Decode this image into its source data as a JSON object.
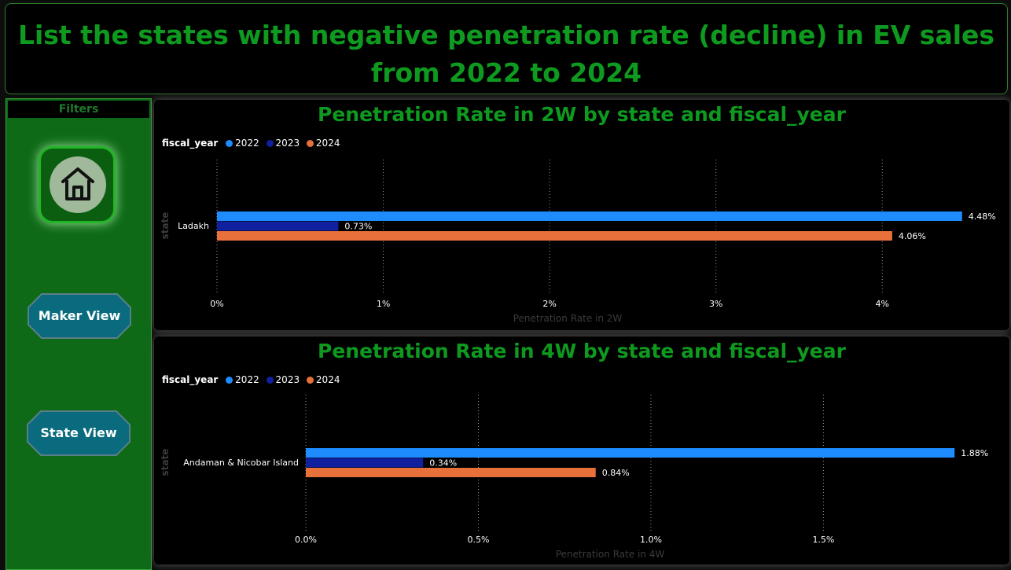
{
  "page": {
    "title": "List the states with negative penetration rate (decline) in EV sales from 2022 to 2024"
  },
  "sidebar": {
    "filters_label": "Filters",
    "home_icon": "home-icon",
    "buttons": [
      {
        "label": "Maker View"
      },
      {
        "label": "State View"
      }
    ]
  },
  "colors": {
    "title_green": "#0e9a1f",
    "sidebar_green": "#0e6a17",
    "series_2022": "#1e8bff",
    "series_2023": "#11209e",
    "series_2024": "#e8703a",
    "nav_button": "#0a6b7e"
  },
  "chart_data": [
    {
      "type": "bar",
      "orientation": "horizontal",
      "title": "Penetration Rate in 2W by state and fiscal_year",
      "xlabel": "Penetration Rate in 2W",
      "ylabel": "state",
      "legend_title": "fiscal_year",
      "legend_position": "top-left",
      "categories": [
        "Ladakh"
      ],
      "xlim": [
        0,
        4.5
      ],
      "ticks": [
        0,
        1,
        2,
        3,
        4
      ],
      "tick_labels": [
        "0%",
        "1%",
        "2%",
        "3%",
        "4%"
      ],
      "grid": true,
      "series": [
        {
          "name": "2022",
          "values": [
            4.48
          ],
          "labels": [
            "4.48%"
          ],
          "color": "#1e8bff"
        },
        {
          "name": "2023",
          "values": [
            0.73
          ],
          "labels": [
            "0.73%"
          ],
          "color": "#11209e"
        },
        {
          "name": "2024",
          "values": [
            4.06
          ],
          "labels": [
            "4.06%"
          ],
          "color": "#e8703a"
        }
      ]
    },
    {
      "type": "bar",
      "orientation": "horizontal",
      "title": "Penetration Rate in 4W by state and fiscal_year",
      "xlabel": "Penetration Rate in 4W",
      "ylabel": "state",
      "legend_title": "fiscal_year",
      "legend_position": "top-left",
      "categories": [
        "Andaman & Nicobar Island"
      ],
      "xlim": [
        0,
        1.9
      ],
      "ticks": [
        0,
        0.5,
        1.0,
        1.5
      ],
      "tick_labels": [
        "0.0%",
        "0.5%",
        "1.0%",
        "1.5%"
      ],
      "grid": true,
      "series": [
        {
          "name": "2022",
          "values": [
            1.88
          ],
          "labels": [
            "1.88%"
          ],
          "color": "#1e8bff"
        },
        {
          "name": "2023",
          "values": [
            0.34
          ],
          "labels": [
            "0.34%"
          ],
          "color": "#11209e"
        },
        {
          "name": "2024",
          "values": [
            0.84
          ],
          "labels": [
            "0.84%"
          ],
          "color": "#e8703a"
        }
      ]
    }
  ]
}
